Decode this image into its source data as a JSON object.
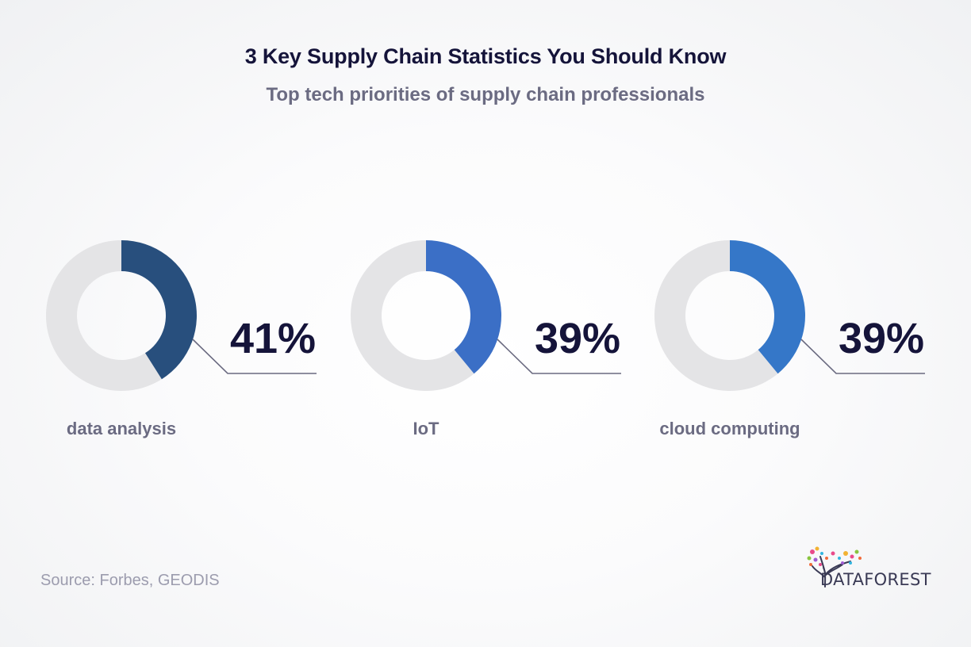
{
  "title": "3 Key Supply Chain Statistics You Should Know",
  "subtitle": "Top tech priorities of supply chain professionals",
  "chart_data": [
    {
      "type": "pie",
      "label": "data analysis",
      "value": 41,
      "value_label": "41%",
      "color": "#284f7d",
      "remainder_color": "#e4e4e6"
    },
    {
      "type": "pie",
      "label": "IoT",
      "value": 39,
      "value_label": "39%",
      "color": "#3b6fc6",
      "remainder_color": "#e4e4e6"
    },
    {
      "type": "pie",
      "label": "cloud computing",
      "value": 39,
      "value_label": "39%",
      "color": "#3577c8",
      "remainder_color": "#e4e4e6"
    }
  ],
  "source": "Source: Forbes, GEODIS",
  "logo": {
    "text": "DATAFOREST",
    "icon": "tree-logo-icon"
  },
  "colors": {
    "title": "#15143a",
    "subtitle": "#6b6b82",
    "value_text": "#15143a",
    "label_text": "#6b6b82",
    "connector": "#6a6a80"
  }
}
